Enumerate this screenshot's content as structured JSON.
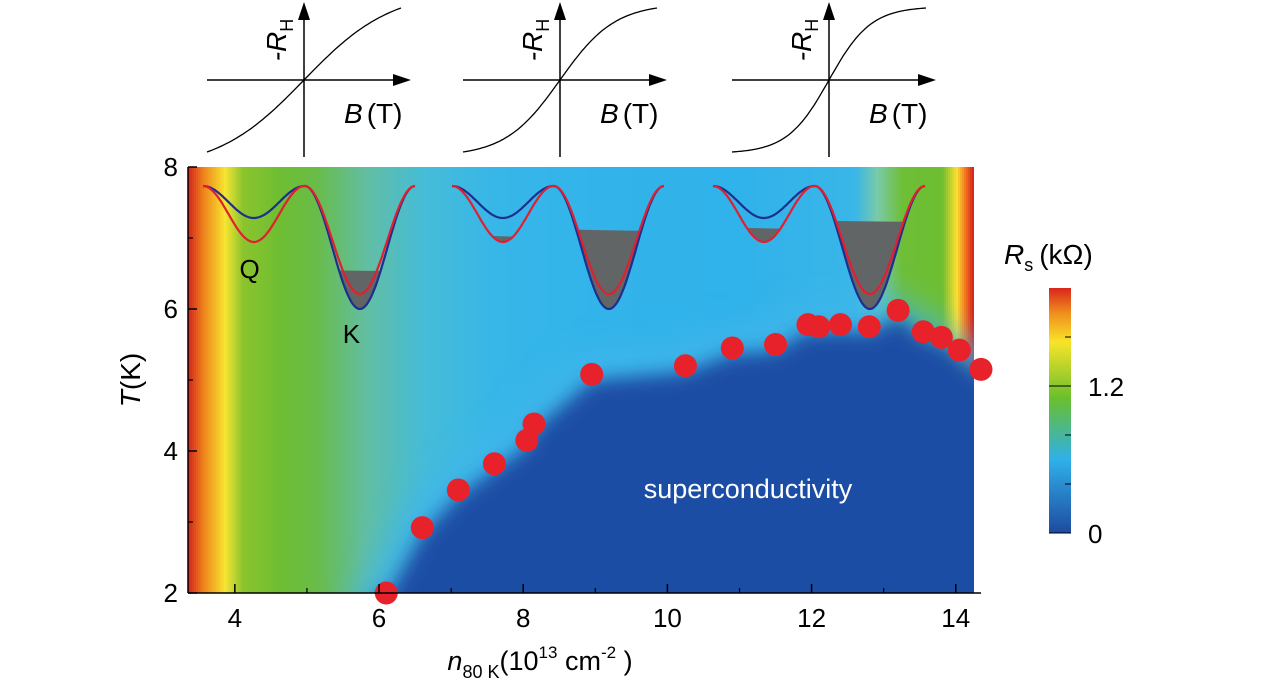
{
  "chart_data": {
    "type": "heatmap",
    "title": "",
    "xlabel": {
      "main": "n",
      "sub": "80 K",
      "units_pre": "(10",
      "units_exp": "13",
      "units_mid": " cm",
      "units_exp2": "-2",
      "units_post": " )"
    },
    "ylabel": {
      "main": "T",
      "units": "(K)"
    },
    "xlim": [
      3.35,
      14.35
    ],
    "ylim": [
      2,
      8
    ],
    "xticks": [
      4,
      6,
      8,
      10,
      12,
      14
    ],
    "yticks": [
      2,
      4,
      6,
      8
    ],
    "colorbar": {
      "label_main": "R",
      "label_sub": "s",
      "label_units": "(kΩ)",
      "range": [
        0,
        2.0
      ],
      "ticks": [
        0,
        1.2
      ],
      "tick_labels": [
        "0",
        "1.2"
      ],
      "colors": [
        "#1e4aa0",
        "#2fb0e8",
        "#6abf2e",
        "#f7e428",
        "#f08c1c",
        "#d8251c"
      ]
    },
    "superconducting_label": "superconductivity",
    "tc_points": {
      "x": [
        6.1,
        6.6,
        7.1,
        7.6,
        8.05,
        8.15,
        8.95,
        10.25,
        10.9,
        11.5,
        11.95,
        12.1,
        12.4,
        12.8,
        13.2,
        13.55,
        13.8,
        14.05,
        14.35
      ],
      "y": [
        2.0,
        2.92,
        3.45,
        3.82,
        4.15,
        4.38,
        5.08,
        5.2,
        5.45,
        5.5,
        5.78,
        5.75,
        5.78,
        5.75,
        5.98,
        5.68,
        5.6,
        5.42,
        5.15
      ],
      "color": "#e8222a"
    },
    "band_insets": {
      "valley_labels": [
        "Q",
        "K"
      ],
      "line_colors": {
        "blue": "#1d2f8f",
        "red": "#e02030",
        "fill": "#616566"
      },
      "fill_levels": [
        0.35,
        0.72,
        0.8
      ]
    },
    "hall_insets": {
      "ylabel_main": "-R",
      "ylabel_sub": "H",
      "xlabel_main": "B",
      "xlabel_units": "(T)",
      "curvature": [
        0.05,
        0.35,
        0.6
      ]
    }
  }
}
